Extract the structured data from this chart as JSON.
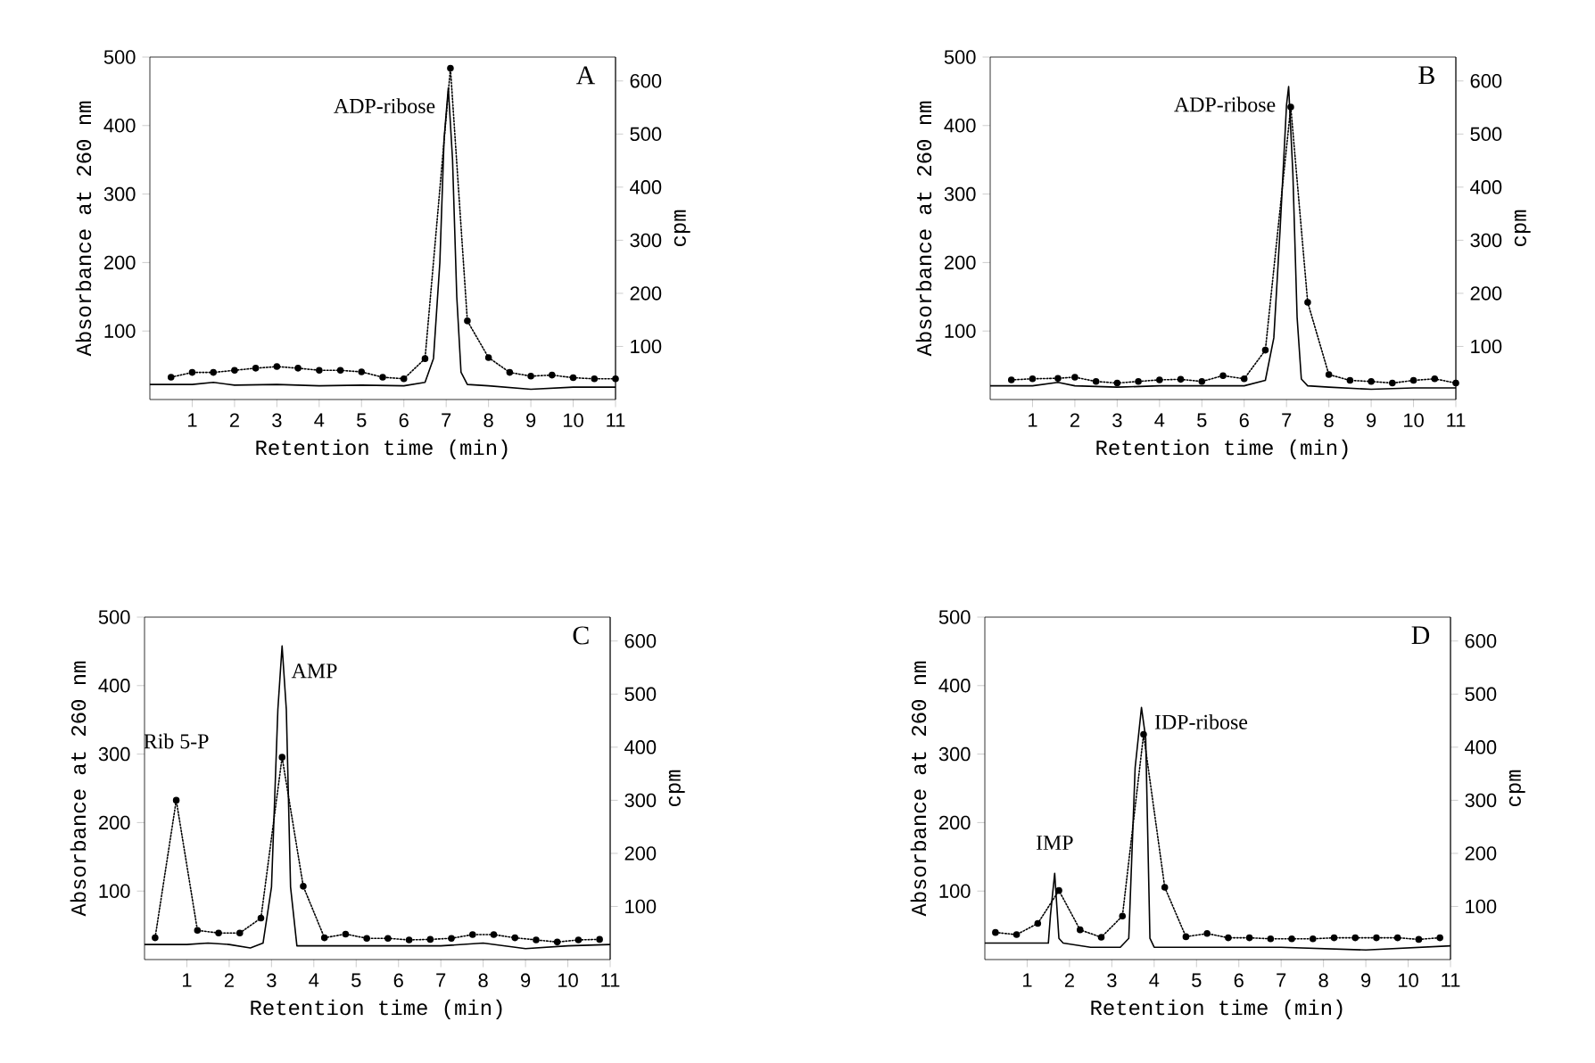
{
  "chart_data": [
    {
      "type": "line",
      "title": "A",
      "xlabel": "Retention time (min)",
      "ylabel": "Absorbance at 260 nm",
      "y2label": "cpm",
      "xlim": [
        0,
        11
      ],
      "xticks": [
        1,
        2,
        3,
        4,
        5,
        6,
        7,
        8,
        9,
        10,
        11
      ],
      "ylim": [
        0,
        500
      ],
      "yticks": [
        100,
        200,
        300,
        400,
        500
      ],
      "y2lim": [
        0,
        645
      ],
      "y2ticks": [
        100,
        200,
        300,
        400,
        500,
        600
      ],
      "series": [
        {
          "color": "#000000",
          "line_style": "solid",
          "marker": "none",
          "x": [
            0,
            1,
            1.5,
            2,
            3,
            4,
            5,
            6,
            6.5,
            6.7,
            6.85,
            6.95,
            7.05,
            7.15,
            7.25,
            7.35,
            7.5,
            8,
            9,
            10,
            11
          ],
          "values": [
            22,
            22,
            25,
            21,
            22,
            20,
            21,
            20,
            25,
            60,
            200,
            380,
            455,
            350,
            150,
            40,
            22,
            20,
            15,
            18,
            18
          ]
        },
        {
          "axis": "y2",
          "color": "#000000",
          "line_style": "dotted",
          "marker": "circle",
          "x": [
            0.5,
            1,
            1.5,
            2,
            2.5,
            3,
            3.5,
            4,
            4.5,
            5,
            5.5,
            6,
            6.5,
            7.1,
            7.5,
            8,
            8.5,
            9,
            9.5,
            10,
            10.5,
            11
          ],
          "values": [
            42,
            51,
            51,
            55,
            59,
            62,
            59,
            55,
            55,
            52,
            42,
            39,
            77,
            624,
            148,
            79,
            51,
            44,
            46,
            41,
            39,
            39
          ]
        }
      ],
      "annotations": [
        {
          "text": "ADP-ribose",
          "x": 7.05,
          "y": 455
        }
      ]
    },
    {
      "type": "line",
      "title": "B",
      "xlabel": "Retention time (min)",
      "ylabel": "Absorbance at 260 nm",
      "y2label": "cpm",
      "xlim": [
        0,
        11
      ],
      "xticks": [
        1,
        2,
        3,
        4,
        5,
        6,
        7,
        8,
        9,
        10,
        11
      ],
      "ylim": [
        0,
        500
      ],
      "yticks": [
        100,
        200,
        300,
        400,
        500
      ],
      "y2lim": [
        0,
        645
      ],
      "y2ticks": [
        100,
        200,
        300,
        400,
        500,
        600
      ],
      "series": [
        {
          "color": "#000000",
          "line_style": "solid",
          "marker": "none",
          "x": [
            0,
            1,
            1.6,
            2,
            3,
            4,
            5,
            6,
            6.5,
            6.7,
            6.85,
            7.0,
            7.05,
            7.15,
            7.25,
            7.35,
            7.5,
            8,
            9,
            10,
            11
          ],
          "values": [
            20,
            20,
            25,
            20,
            18,
            20,
            20,
            20,
            28,
            90,
            250,
            430,
            457,
            330,
            120,
            30,
            20,
            18,
            15,
            17,
            17
          ]
        },
        {
          "axis": "y2",
          "color": "#000000",
          "line_style": "dotted",
          "marker": "circle",
          "x": [
            0.5,
            1,
            1.6,
            2,
            2.5,
            3,
            3.5,
            4,
            4.5,
            5,
            5.5,
            6,
            6.5,
            7.1,
            7.5,
            8,
            8.5,
            9,
            9.5,
            10,
            10.5,
            11
          ],
          "values": [
            37,
            39,
            40,
            42,
            34,
            31,
            34,
            37,
            38,
            34,
            45,
            39,
            93,
            551,
            183,
            47,
            36,
            34,
            31,
            36,
            39,
            31
          ]
        }
      ],
      "annotations": [
        {
          "text": "ADP-ribose",
          "x": 7.05,
          "y": 457
        }
      ]
    },
    {
      "type": "line",
      "title": "C",
      "xlabel": "Retention time (min)",
      "ylabel": "Absorbance at 260 nm",
      "y2label": "cpm",
      "xlim": [
        0,
        11
      ],
      "xticks": [
        1,
        2,
        3,
        4,
        5,
        6,
        7,
        8,
        9,
        10,
        11
      ],
      "ylim": [
        0,
        500
      ],
      "yticks": [
        100,
        200,
        300,
        400,
        500
      ],
      "y2lim": [
        0,
        645
      ],
      "y2ticks": [
        100,
        200,
        300,
        400,
        500,
        600
      ],
      "series": [
        {
          "color": "#000000",
          "line_style": "solid",
          "marker": "none",
          "x": [
            0,
            1,
            1.5,
            2,
            2.5,
            2.8,
            3.0,
            3.15,
            3.25,
            3.35,
            3.45,
            3.6,
            5,
            6,
            7,
            8,
            9,
            10,
            11
          ],
          "values": [
            22,
            22,
            24,
            22,
            17,
            24,
            106,
            365,
            458,
            365,
            106,
            20,
            20,
            20,
            20,
            24,
            16,
            20,
            22
          ]
        },
        {
          "axis": "y2",
          "color": "#000000",
          "line_style": "dotted",
          "marker": "circle",
          "x": [
            0.25,
            0.75,
            1.25,
            1.75,
            2.25,
            2.75,
            3.25,
            3.75,
            4.25,
            4.75,
            5.25,
            5.75,
            6.25,
            6.75,
            7.25,
            7.75,
            8.25,
            8.75,
            9.25,
            9.75,
            10.25,
            10.75
          ],
          "values": [
            41,
            300,
            55,
            50,
            50,
            78,
            381,
            138,
            41,
            48,
            40,
            40,
            37,
            38,
            40,
            47,
            47,
            41,
            37,
            33,
            37,
            38
          ]
        }
      ],
      "annotations": [
        {
          "text": "AMP",
          "x": 3.25,
          "y": 458
        },
        {
          "text": "Rib 5-P",
          "x": 0.75,
          "y": 232
        }
      ]
    },
    {
      "type": "line",
      "title": "D",
      "xlabel": "Retention time (min)",
      "ylabel": "Absorbance at 260 nm",
      "y2label": "cpm",
      "xlim": [
        0,
        11
      ],
      "xticks": [
        1,
        2,
        3,
        4,
        5,
        6,
        7,
        8,
        9,
        10,
        11
      ],
      "ylim": [
        0,
        500
      ],
      "yticks": [
        100,
        200,
        300,
        400,
        500
      ],
      "y2lim": [
        0,
        645
      ],
      "y2ticks": [
        100,
        200,
        300,
        400,
        500,
        600
      ],
      "series": [
        {
          "color": "#000000",
          "line_style": "solid",
          "marker": "none",
          "x": [
            0,
            1,
            1.5,
            1.55,
            1.65,
            1.75,
            1.85,
            2.5,
            3.2,
            3.4,
            3.55,
            3.7,
            3.8,
            3.9,
            4.0,
            5,
            7,
            9,
            11
          ],
          "values": [
            24,
            24,
            24,
            65,
            126,
            31,
            24,
            18,
            18,
            31,
            280,
            368,
            323,
            31,
            18,
            18,
            18,
            14,
            20
          ]
        },
        {
          "axis": "y2",
          "color": "#000000",
          "line_style": "dotted",
          "marker": "circle",
          "x": [
            0.25,
            0.75,
            1.25,
            1.75,
            2.25,
            2.75,
            3.25,
            3.75,
            4.25,
            4.75,
            5.25,
            5.75,
            6.25,
            6.75,
            7.25,
            7.75,
            8.25,
            8.75,
            9.25,
            9.75,
            10.25,
            10.75
          ],
          "values": [
            51,
            47,
            68,
            130,
            56,
            42,
            82,
            424,
            136,
            43,
            49,
            41,
            41,
            39,
            39,
            39,
            41,
            41,
            41,
            41,
            38,
            41
          ]
        }
      ],
      "annotations": [
        {
          "text": "IMP",
          "x": 1.65,
          "y": 126
        },
        {
          "text": "IDP-ribose",
          "x": 3.7,
          "y": 368
        }
      ]
    }
  ]
}
